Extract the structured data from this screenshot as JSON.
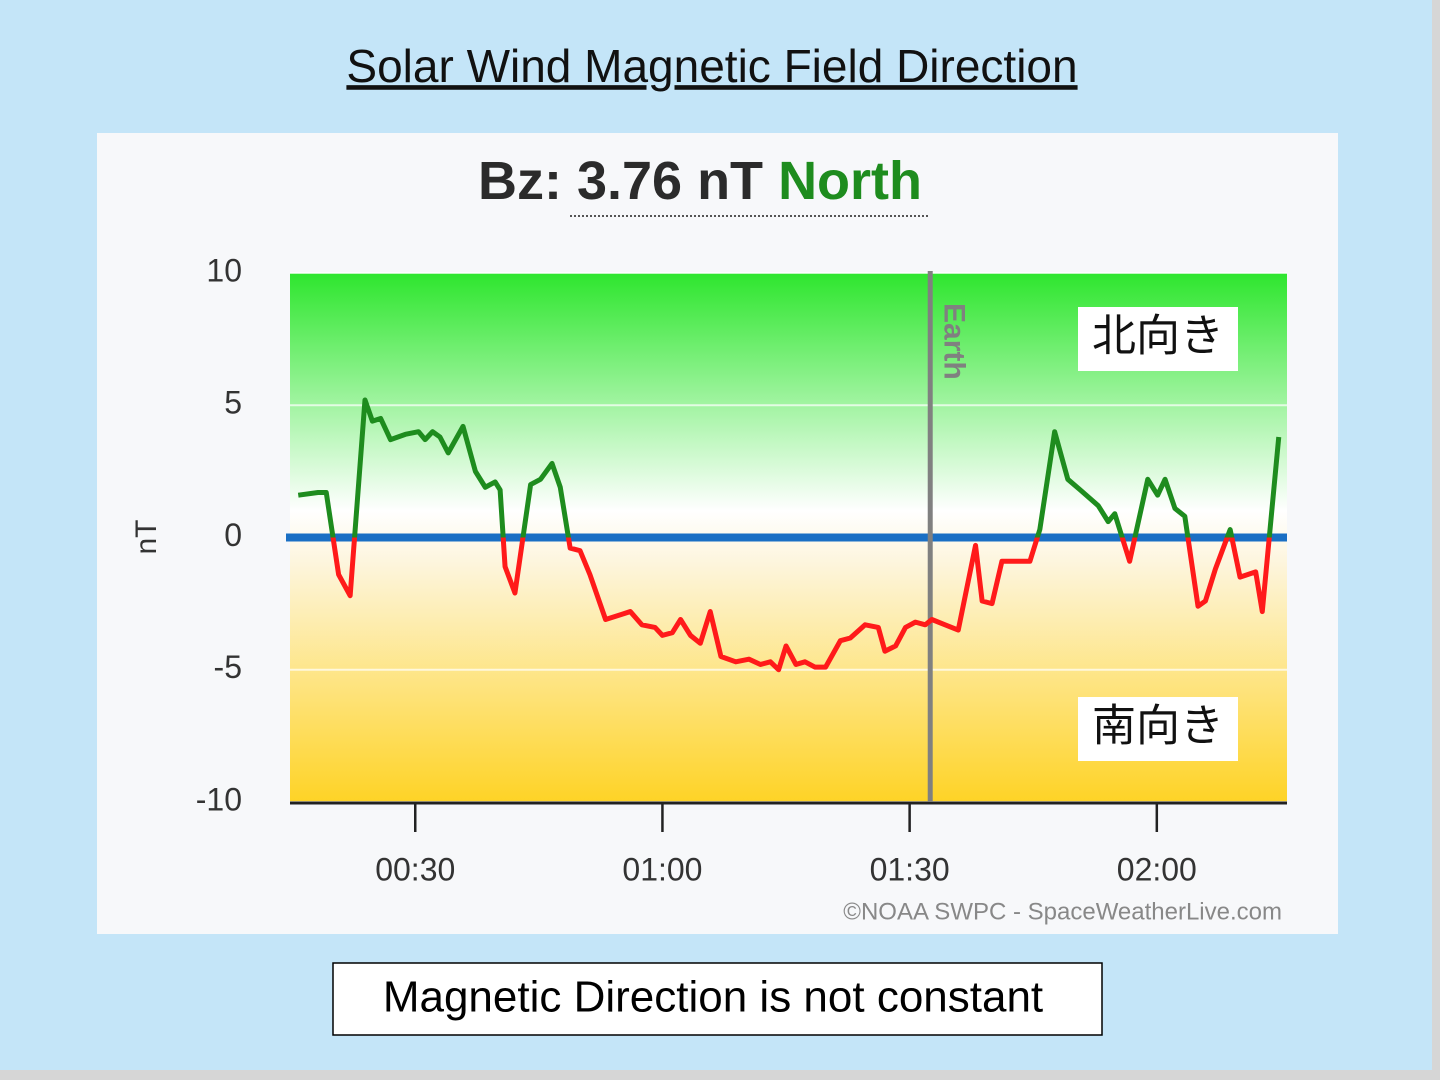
{
  "slide_title": "Solar Wind Magnetic Field Direction",
  "caption": "Magnetic Direction is not constant",
  "chart_data": {
    "type": "line",
    "bz": {
      "label": "Bz:",
      "value": 3.76,
      "value_label": "3.76 nT",
      "direction": "North",
      "direction_color": "#1e8c1e"
    },
    "ylabel": "nT",
    "credit": "©NOAA SWPC - SpaceWeatherLive.com",
    "north_label": "北向き",
    "south_label": "南向き",
    "earth": {
      "label": "Earth",
      "x": 92.5,
      "color": "#808080"
    },
    "zero_line_color": "#1a6fc4",
    "color_above": "#1e8c1e",
    "color_below": "#ff1a1a",
    "xlim": [
      14.8,
      135.8
    ],
    "xticks": [
      {
        "value": 30,
        "label": "00:30"
      },
      {
        "value": 60,
        "label": "01:00"
      },
      {
        "value": 90,
        "label": "01:30"
      },
      {
        "value": 120,
        "label": "02:00"
      }
    ],
    "ylim": [
      -10,
      10
    ],
    "yticks": [
      -10,
      -5,
      0,
      5,
      10
    ],
    "grid": true,
    "series": [
      {
        "name": "Bz",
        "x": [
          15.8,
          18.2,
          19.2,
          20.7,
          22.1,
          23.9,
          24.8,
          25.8,
          27.0,
          28.8,
          30.4,
          31.2,
          32.1,
          33.0,
          34.0,
          35.8,
          37.3,
          38.5,
          39.7,
          40.3,
          40.9,
          42.1,
          44.0,
          45.2,
          46.6,
          47.6,
          48.8,
          50.0,
          51.2,
          53.1,
          55.1,
          56.1,
          57.5,
          59.1,
          60.0,
          61.2,
          62.2,
          63.4,
          64.6,
          65.8,
          67.1,
          68.9,
          70.5,
          71.9,
          73.1,
          74.1,
          75.0,
          76.2,
          77.3,
          78.5,
          79.8,
          81.6,
          82.8,
          84.6,
          86.2,
          87.0,
          88.3,
          89.5,
          90.7,
          91.9,
          92.7,
          94.3,
          95.9,
          98.0,
          98.8,
          100.0,
          101.2,
          102.8,
          104.6,
          105.8,
          107.6,
          109.2,
          110.7,
          112.9,
          114.1,
          114.9,
          116.7,
          118.9,
          120.1,
          121.0,
          122.2,
          123.4,
          125.0,
          125.9,
          127.1,
          128.9,
          130.1,
          132.0,
          132.8,
          134.8
        ],
        "values": [
          1.6,
          1.7,
          1.7,
          -1.4,
          -2.2,
          5.2,
          4.4,
          4.5,
          3.7,
          3.9,
          4.0,
          3.7,
          4.0,
          3.8,
          3.2,
          4.2,
          2.5,
          1.9,
          2.1,
          1.8,
          -1.1,
          -2.1,
          2.0,
          2.2,
          2.8,
          1.9,
          -0.4,
          -0.5,
          -1.4,
          -3.1,
          -2.9,
          -2.8,
          -3.3,
          -3.4,
          -3.7,
          -3.6,
          -3.1,
          -3.7,
          -4.0,
          -2.8,
          -4.5,
          -4.7,
          -4.6,
          -4.8,
          -4.7,
          -5.0,
          -4.1,
          -4.8,
          -4.7,
          -4.9,
          -4.9,
          -3.9,
          -3.8,
          -3.3,
          -3.4,
          -4.3,
          -4.1,
          -3.4,
          -3.2,
          -3.3,
          -3.1,
          -3.3,
          -3.5,
          -0.3,
          -2.4,
          -2.5,
          -0.9,
          -0.9,
          -0.9,
          0.3,
          4.0,
          2.2,
          1.8,
          1.2,
          0.6,
          0.9,
          -0.9,
          2.2,
          1.6,
          2.2,
          1.1,
          0.8,
          -2.6,
          -2.4,
          -1.2,
          0.3,
          -1.5,
          -1.3,
          -2.8,
          3.8
        ]
      }
    ]
  }
}
